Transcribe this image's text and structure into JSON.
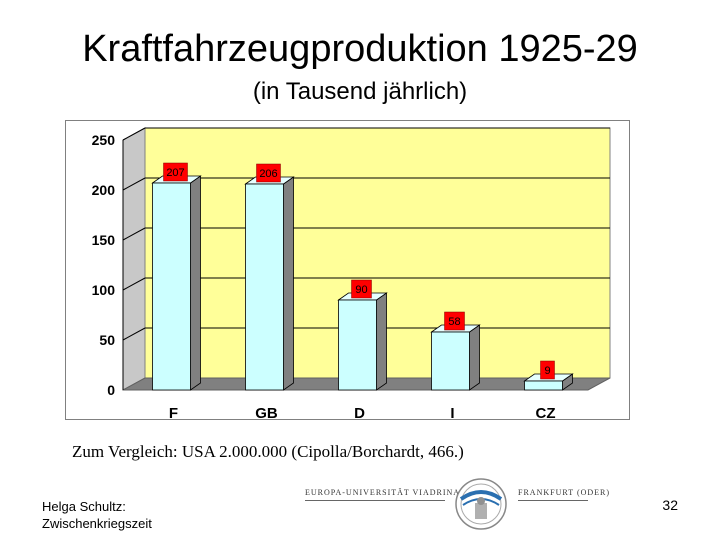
{
  "slide": {
    "title": "Kraftfahrzeugproduktion 1925-29",
    "subtitle": "(in Tausend jährlich)",
    "note": "Zum Vergleich: USA 2.000.000 (Cipolla/Borchardt, 466.)",
    "author_line1": "Helga Schultz:",
    "author_line2": "Zwischenkriegszeit",
    "page_number": "32",
    "university_left": "EUROPA-UNIVERSITÄT VIADRINA",
    "university_right": "FRANKFURT (ODER)"
  },
  "colors": {
    "plot_background": "#ffff99",
    "bar_face": "#ccffff",
    "bar_side": "#808080",
    "label_box": "#ff0000",
    "floor": "#808080"
  },
  "chart_data": {
    "type": "bar",
    "categories": [
      "F",
      "GB",
      "D",
      "I",
      "CZ"
    ],
    "values": [
      207,
      206,
      90,
      58,
      9
    ],
    "ylim": [
      0,
      250
    ],
    "yticks": [
      0,
      50,
      100,
      150,
      200,
      250
    ],
    "title": "",
    "xlabel": "",
    "ylabel": "",
    "grid": true,
    "legend": false,
    "style": "3d"
  }
}
